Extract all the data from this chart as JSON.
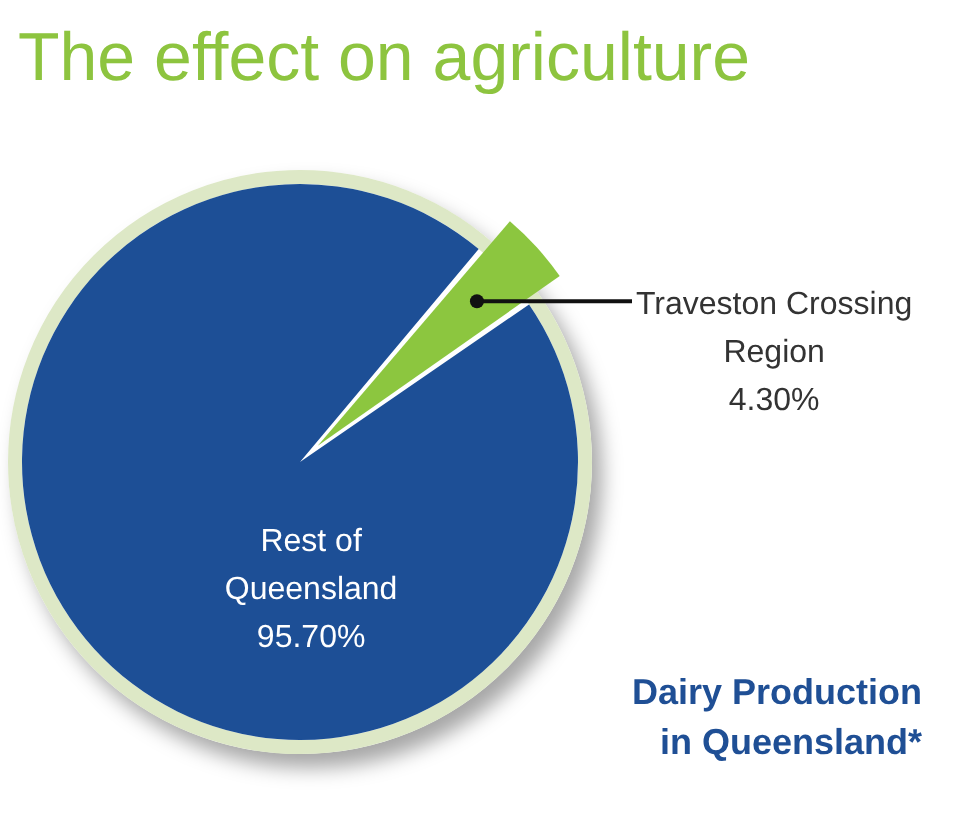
{
  "chart_data": {
    "type": "pie",
    "title": "The effect on agriculture",
    "categories": [
      "Traveston Crossing Region",
      "Rest of Queensland"
    ],
    "values": [
      4.3,
      95.7
    ],
    "colors": [
      "#8cc63f",
      "#1d4f96"
    ],
    "value_labels": [
      "4.30%",
      "95.70%"
    ],
    "annotations": [
      "Dairy Production in Queensland*"
    ]
  }
}
